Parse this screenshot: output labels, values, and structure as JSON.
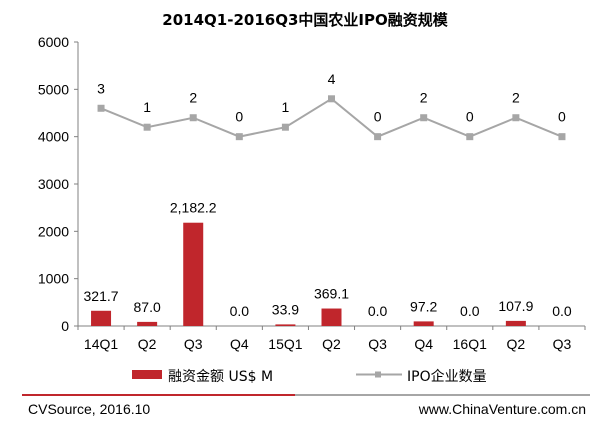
{
  "chart_data": {
    "type": "bar",
    "title": "2014Q1-2016Q3中国农业IPO融资规模",
    "categories": [
      "14Q1",
      "Q2",
      "Q3",
      "Q4",
      "15Q1",
      "Q2",
      "Q3",
      "Q4",
      "16Q1",
      "Q2",
      "Q3"
    ],
    "ylim": [
      0,
      6000
    ],
    "yticks": [
      0,
      1000,
      2000,
      3000,
      4000,
      5000,
      6000
    ],
    "series": [
      {
        "name": "融资金额 US$ M",
        "type": "bar",
        "color": "#C0262C",
        "values": [
          321.7,
          87.0,
          2182.2,
          0.0,
          33.9,
          369.1,
          0.0,
          97.2,
          0.0,
          107.9,
          0.0
        ],
        "labels": [
          "321.7",
          "87.0",
          "2,182.2",
          "0.0",
          "33.9",
          "369.1",
          "0.0",
          "97.2",
          "0.0",
          "107.9",
          "0.0"
        ]
      },
      {
        "name": "IPO企业数量",
        "type": "line",
        "color": "#A6A6A6",
        "values": [
          3,
          1,
          2,
          0,
          1,
          4,
          0,
          2,
          0,
          2,
          0
        ],
        "labels": [
          "3",
          "1",
          "2",
          "0",
          "1",
          "4",
          "0",
          "2",
          "0",
          "2",
          "0"
        ],
        "plotted_values": [
          4600,
          4200,
          4400,
          4000,
          4200,
          4800,
          4000,
          4400,
          4000,
          4400,
          4000
        ]
      }
    ],
    "grid": false,
    "legend": "bottom"
  },
  "footer": {
    "source": "CVSource, 2016.10",
    "website": "www.ChinaVenture.com.cn",
    "rule_colors": [
      "#C0262C",
      "#A6A6A6"
    ]
  }
}
